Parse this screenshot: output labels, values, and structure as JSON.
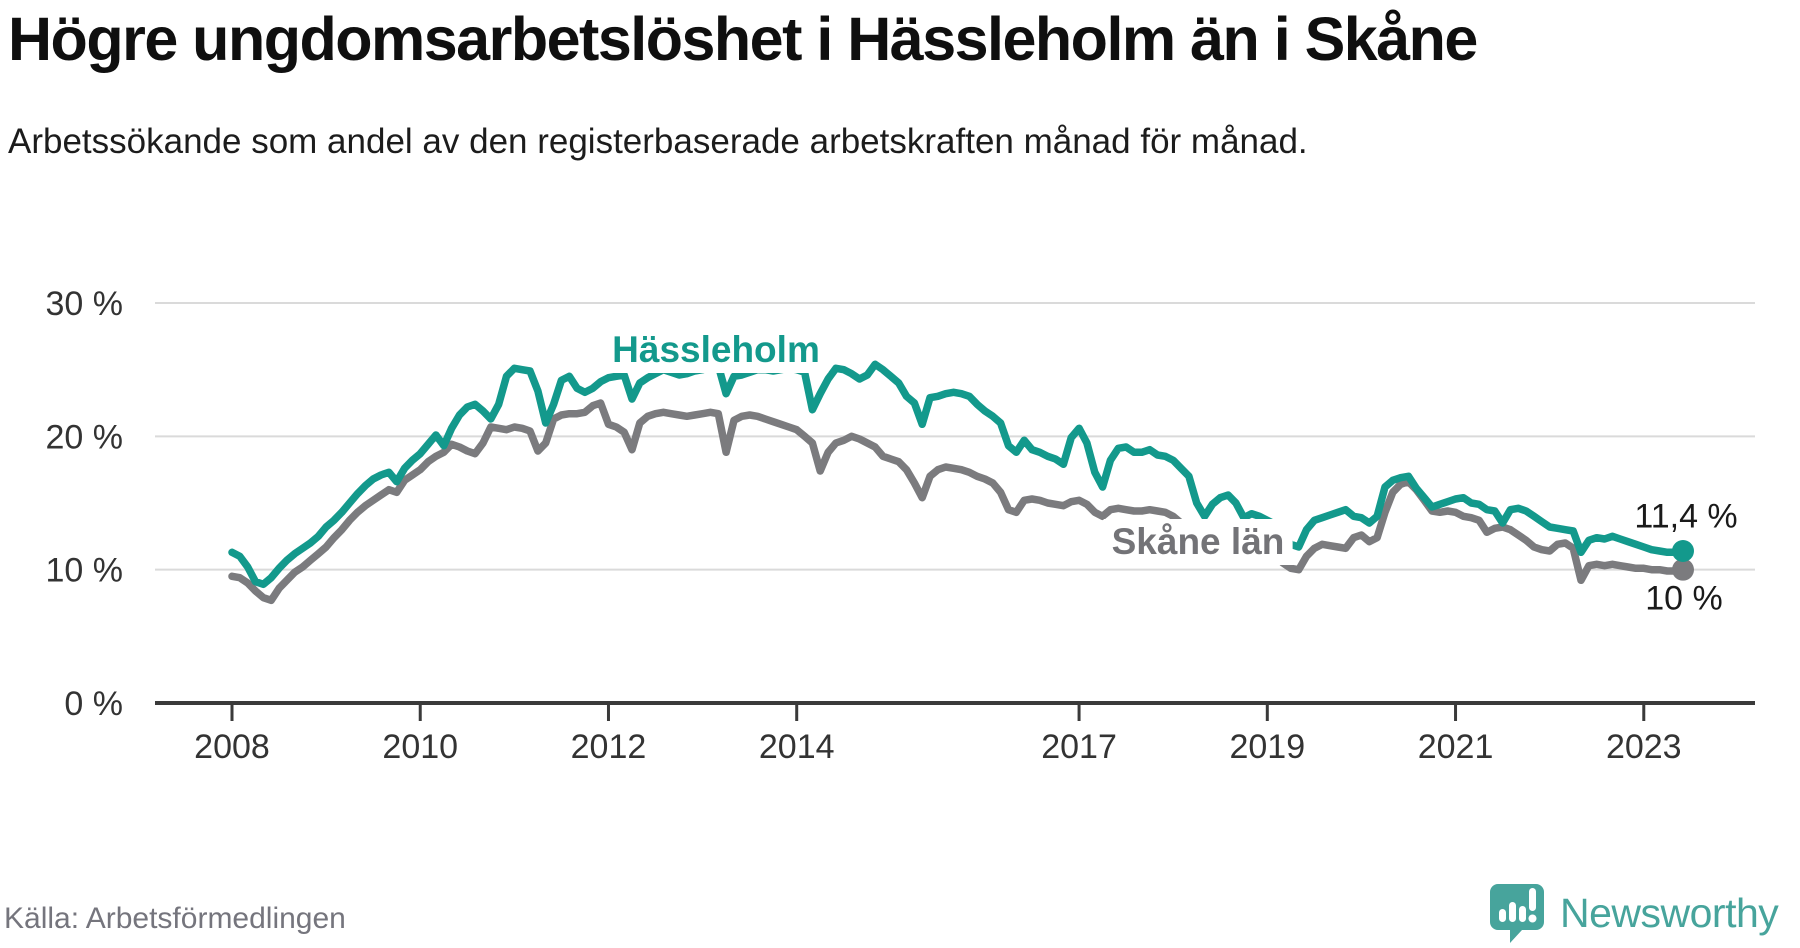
{
  "title": "Högre ungdomsarbetslöshet i Hässleholm än i Skåne",
  "subtitle": "Arbetssökande som andel av den registerbaserade arbetskraften månad för månad.",
  "source": "Källa: Arbetsförmedlingen",
  "branding": {
    "name": "Newsworthy",
    "icon": "newsworthy-speech-bubble-bar-chart-logo",
    "color": "#47a49c"
  },
  "colors": {
    "haessleholm_line": "#13998c",
    "skane_line": "#7b7b7e",
    "skane_label": "#737377",
    "grid": "#dadada",
    "axis": "#3a3a3a",
    "tick_text": "#333333",
    "end_label_text": "#1a1a1a"
  },
  "chart_data": {
    "type": "line",
    "title": "Högre ungdomsarbetslöshet i Hässleholm än i Skåne",
    "subtitle": "Arbetssökande som andel av den registerbaserade arbetskraften månad för månad.",
    "frequency": "monthly",
    "x_start": "2008-01",
    "x_end": "2023-06",
    "x_tick_years": [
      2008,
      2010,
      2012,
      2014,
      2017,
      2019,
      2021,
      2023
    ],
    "y_ticks": [
      {
        "value": 30,
        "label": "30 %"
      },
      {
        "value": 20,
        "label": "20 %"
      },
      {
        "value": 10,
        "label": "10 %"
      },
      {
        "value": 0,
        "label": "0 %"
      }
    ],
    "ylim": [
      0,
      30
    ],
    "grid": "horizontal-only",
    "legend_position": "inline-labels-on-chart",
    "series": [
      {
        "name": "Skåne län",
        "color": "#7b7b7e",
        "end_label": "10 %",
        "end_value": 10.0,
        "values": [
          9.5,
          9.4,
          9.0,
          8.4,
          7.9,
          7.7,
          8.6,
          9.2,
          9.8,
          10.2,
          10.7,
          11.2,
          11.7,
          12.4,
          13.0,
          13.7,
          14.3,
          14.8,
          15.2,
          15.6,
          16.0,
          15.8,
          16.7,
          17.1,
          17.5,
          18.1,
          18.5,
          18.8,
          19.4,
          19.2,
          18.9,
          18.7,
          19.5,
          20.7,
          20.6,
          20.5,
          20.7,
          20.6,
          20.4,
          18.9,
          19.5,
          21.3,
          21.6,
          21.7,
          21.7,
          21.8,
          22.3,
          22.5,
          20.9,
          20.7,
          20.3,
          19.0,
          21.0,
          21.5,
          21.7,
          21.8,
          21.7,
          21.6,
          21.5,
          21.6,
          21.7,
          21.8,
          21.7,
          18.8,
          21.2,
          21.5,
          21.6,
          21.5,
          21.3,
          21.1,
          20.9,
          20.7,
          20.5,
          20.0,
          19.5,
          17.4,
          18.8,
          19.5,
          19.7,
          20.0,
          19.8,
          19.5,
          19.2,
          18.5,
          18.3,
          18.1,
          17.5,
          16.5,
          15.4,
          17.0,
          17.5,
          17.7,
          17.6,
          17.5,
          17.3,
          17.0,
          16.8,
          16.5,
          15.8,
          14.5,
          14.3,
          15.2,
          15.3,
          15.2,
          15.0,
          14.9,
          14.8,
          15.1,
          15.2,
          14.9,
          14.3,
          14.0,
          14.5,
          14.6,
          14.5,
          14.4,
          14.4,
          14.5,
          14.4,
          14.3,
          14.0,
          13.5,
          13.0,
          12.2,
          11.9,
          12.3,
          12.5,
          12.4,
          12.1,
          11.7,
          11.5,
          11.3,
          11.2,
          11.0,
          10.5,
          10.1,
          10.0,
          11.0,
          11.6,
          11.9,
          11.8,
          11.7,
          11.6,
          12.4,
          12.6,
          12.1,
          12.4,
          14.3,
          15.8,
          16.4,
          16.6,
          16.0,
          15.2,
          14.4,
          14.3,
          14.4,
          14.3,
          14.0,
          13.9,
          13.7,
          12.8,
          13.1,
          13.2,
          13.0,
          12.6,
          12.2,
          11.7,
          11.5,
          11.4,
          11.9,
          12.0,
          11.6,
          9.2,
          10.3,
          10.4,
          10.3,
          10.4,
          10.3,
          10.2,
          10.1,
          10.1,
          10.0,
          10.0,
          9.9,
          9.9,
          10.0
        ]
      },
      {
        "name": "Hässleholm",
        "color": "#13998c",
        "end_label": "11,4 %",
        "end_value": 11.4,
        "values": [
          11.3,
          11.0,
          10.2,
          9.1,
          8.9,
          9.4,
          10.1,
          10.7,
          11.2,
          11.6,
          12.0,
          12.5,
          13.2,
          13.7,
          14.3,
          15.0,
          15.7,
          16.3,
          16.8,
          17.1,
          17.3,
          16.6,
          17.6,
          18.2,
          18.7,
          19.4,
          20.1,
          19.3,
          20.6,
          21.6,
          22.2,
          22.4,
          21.9,
          21.3,
          22.4,
          24.5,
          25.1,
          25.0,
          24.9,
          23.4,
          21.0,
          22.4,
          24.2,
          24.5,
          23.6,
          23.3,
          23.6,
          24.1,
          24.4,
          24.5,
          24.6,
          22.8,
          24.0,
          24.4,
          24.7,
          25.0,
          24.8,
          24.6,
          24.7,
          24.9,
          25.0,
          25.2,
          25.3,
          23.2,
          24.5,
          24.6,
          24.8,
          25.0,
          25.0,
          24.9,
          25.0,
          25.1,
          25.0,
          24.8,
          22.0,
          23.2,
          24.3,
          25.1,
          25.0,
          24.7,
          24.3,
          24.6,
          25.4,
          25.0,
          24.5,
          24.0,
          23.0,
          22.5,
          20.9,
          22.9,
          23.0,
          23.2,
          23.3,
          23.2,
          23.0,
          22.4,
          21.9,
          21.5,
          21.0,
          19.3,
          18.8,
          19.7,
          19.0,
          18.8,
          18.5,
          18.3,
          17.9,
          19.9,
          20.6,
          19.5,
          17.3,
          16.2,
          18.2,
          19.1,
          19.2,
          18.8,
          18.8,
          19.0,
          18.6,
          18.5,
          18.2,
          17.6,
          17.0,
          15.0,
          14.0,
          14.9,
          15.4,
          15.6,
          15.0,
          13.9,
          14.2,
          14.0,
          13.7,
          13.4,
          12.6,
          11.9,
          11.7,
          13.0,
          13.7,
          13.9,
          14.1,
          14.3,
          14.5,
          14.0,
          13.9,
          13.5,
          14.0,
          16.2,
          16.7,
          16.9,
          17.0,
          16.1,
          15.4,
          14.7,
          14.9,
          15.1,
          15.3,
          15.4,
          15.0,
          14.9,
          14.5,
          14.4,
          13.5,
          14.5,
          14.6,
          14.4,
          14.0,
          13.6,
          13.2,
          13.1,
          13.0,
          12.9,
          11.3,
          12.2,
          12.4,
          12.3,
          12.5,
          12.3,
          12.1,
          11.9,
          11.7,
          11.5,
          11.4,
          11.3,
          11.3,
          11.4
        ]
      }
    ]
  }
}
